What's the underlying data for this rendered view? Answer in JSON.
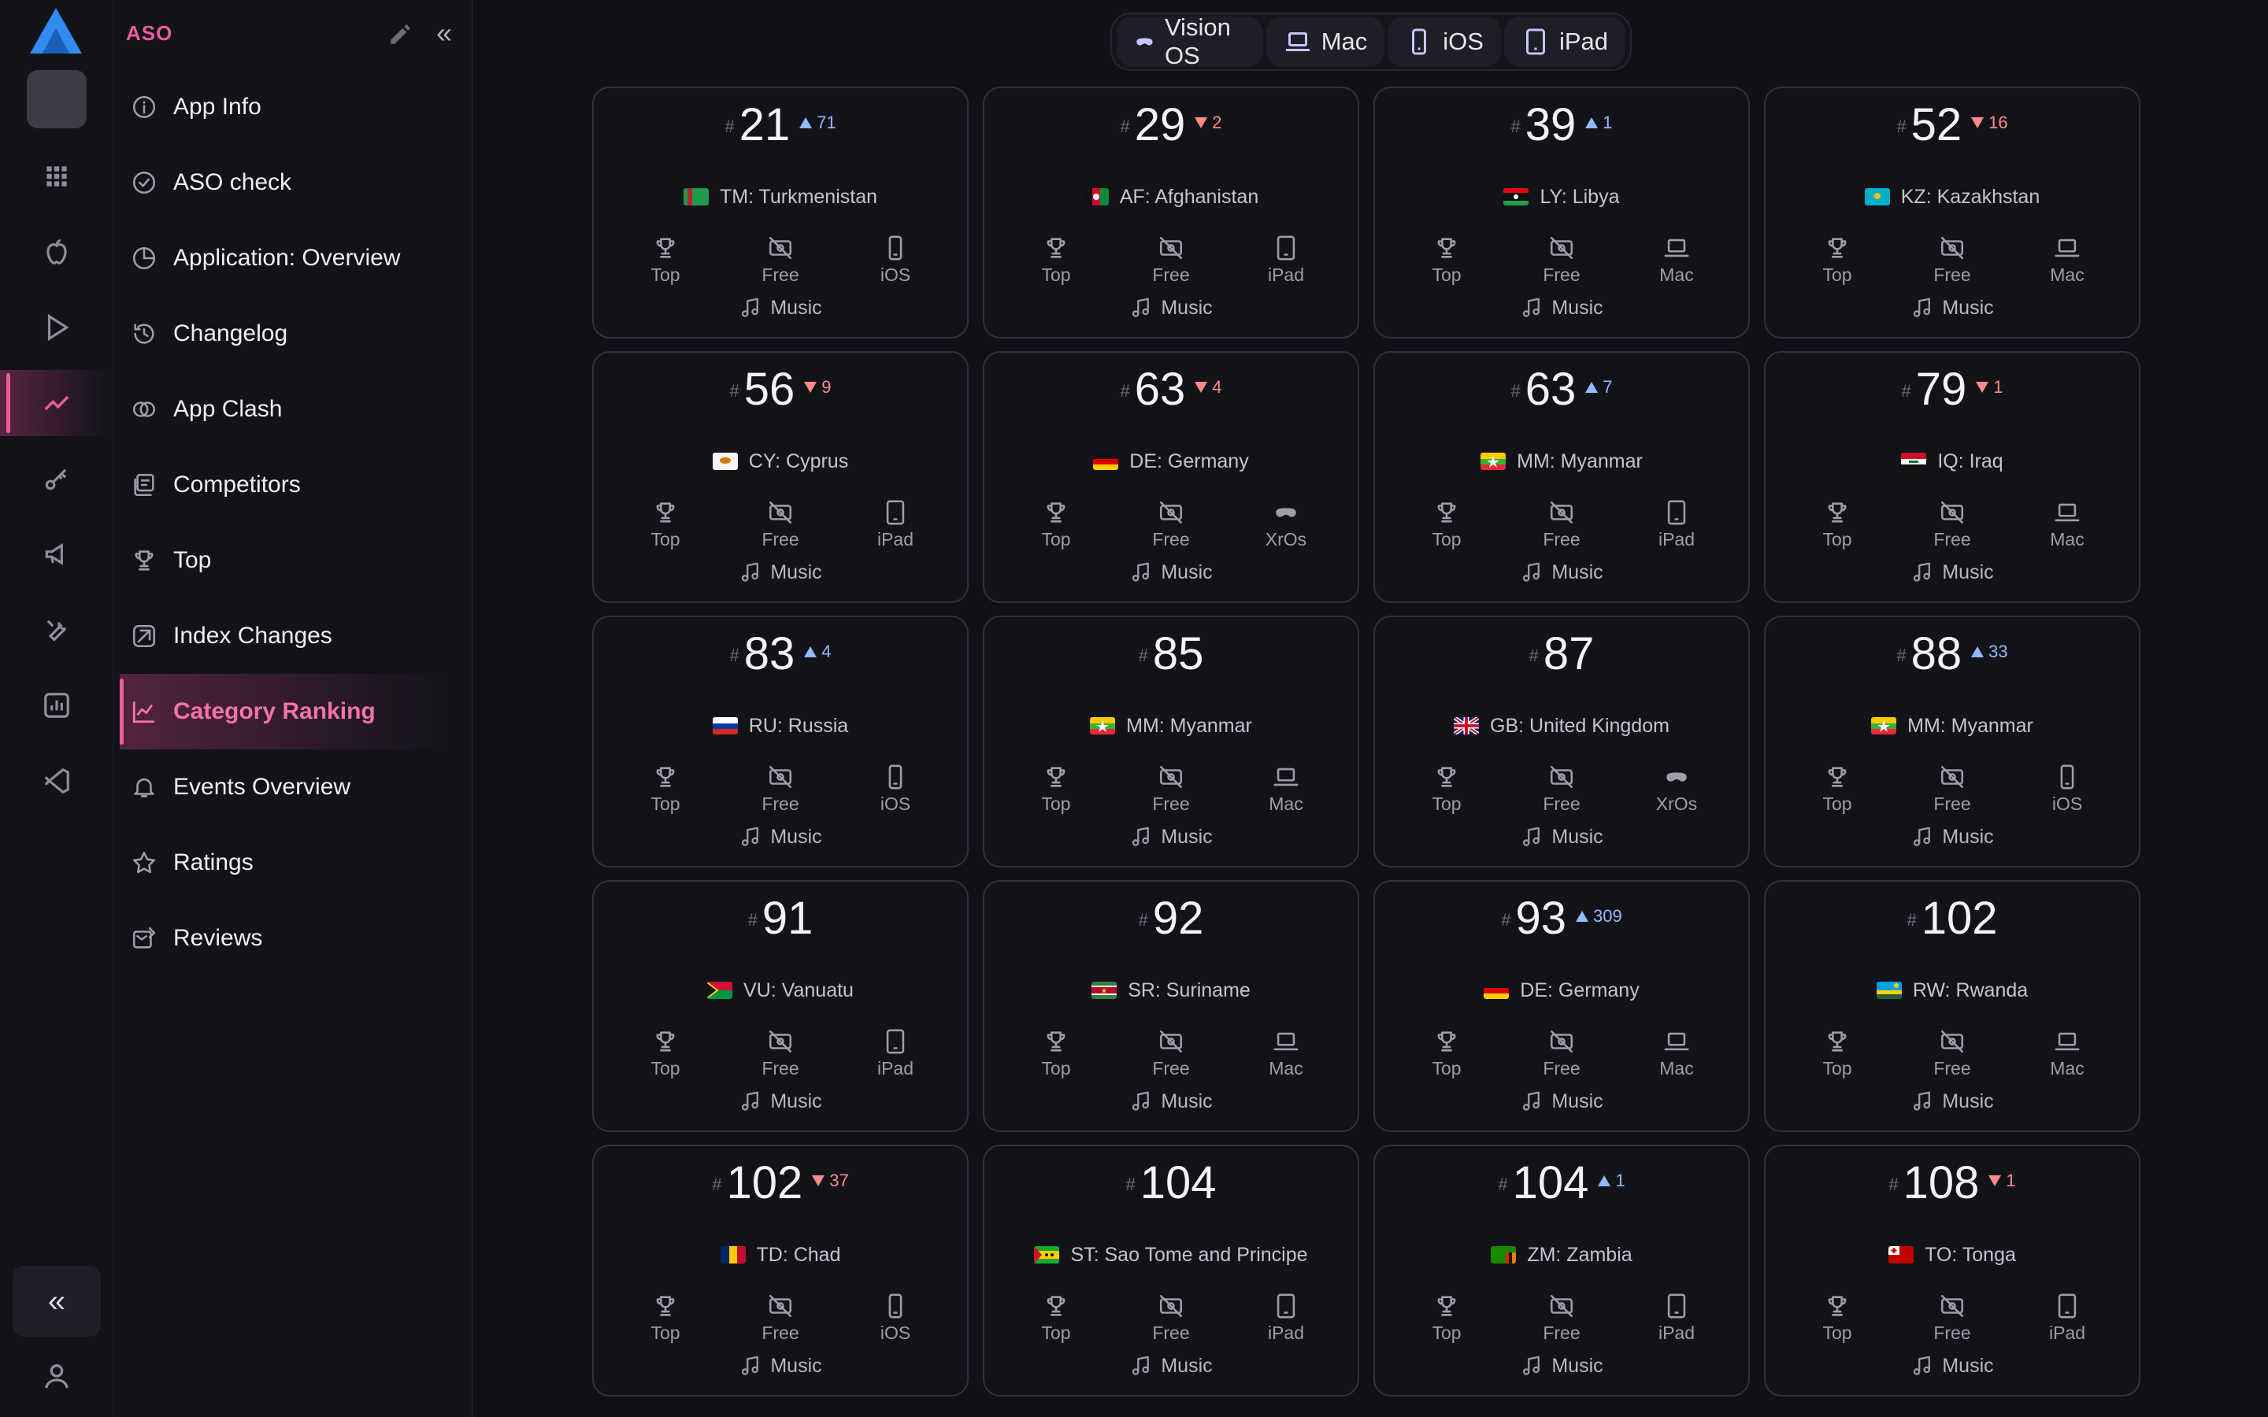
{
  "nav": {
    "title": "ASO",
    "items": [
      {
        "label": "App Info",
        "icon": "info-icon"
      },
      {
        "label": "ASO check",
        "icon": "check-circle-icon"
      },
      {
        "label": "Application: Overview",
        "icon": "pie-chart-icon"
      },
      {
        "label": "Changelog",
        "icon": "history-icon"
      },
      {
        "label": "App Clash",
        "icon": "versus-icon"
      },
      {
        "label": "Competitors",
        "icon": "competitors-icon"
      },
      {
        "label": "Top",
        "icon": "trophy-icon"
      },
      {
        "label": "Index Changes",
        "icon": "index-changes-icon"
      },
      {
        "label": "Category Ranking",
        "icon": "line-chart-icon",
        "active": true
      },
      {
        "label": "Events Overview",
        "icon": "bell-icon"
      },
      {
        "label": "Ratings",
        "icon": "star-icon"
      },
      {
        "label": "Reviews",
        "icon": "reviews-icon"
      }
    ]
  },
  "platforms": [
    {
      "label": "Vision OS",
      "icon": "vision-pro-icon"
    },
    {
      "label": "Mac",
      "icon": "laptop-icon"
    },
    {
      "label": "iOS",
      "icon": "phone-icon"
    },
    {
      "label": "iPad",
      "icon": "tablet-icon"
    }
  ],
  "colors": {
    "accent": "#ec5c9c",
    "up": "#93b9ff",
    "down": "#ff8a8a"
  },
  "cards": [
    {
      "rank": "21",
      "change": "71",
      "dir": "up",
      "country": "TM: Turkmenistan",
      "flag": "TM",
      "type": "Top",
      "price": "Free",
      "device": "iOS",
      "genre": "Music"
    },
    {
      "rank": "29",
      "change": "2",
      "dir": "down",
      "country": "AF: Afghanistan",
      "flag": "AF",
      "type": "Top",
      "price": "Free",
      "device": "iPad",
      "genre": "Music"
    },
    {
      "rank": "39",
      "change": "1",
      "dir": "up",
      "country": "LY: Libya",
      "flag": "LY",
      "type": "Top",
      "price": "Free",
      "device": "Mac",
      "genre": "Music"
    },
    {
      "rank": "52",
      "change": "16",
      "dir": "down",
      "country": "KZ: Kazakhstan",
      "flag": "KZ",
      "type": "Top",
      "price": "Free",
      "device": "Mac",
      "genre": "Music"
    },
    {
      "rank": "56",
      "change": "9",
      "dir": "down",
      "country": "CY: Cyprus",
      "flag": "CY",
      "type": "Top",
      "price": "Free",
      "device": "iPad",
      "genre": "Music"
    },
    {
      "rank": "63",
      "change": "4",
      "dir": "down",
      "country": "DE: Germany",
      "flag": "DE",
      "type": "Top",
      "price": "Free",
      "device": "XrOs",
      "genre": "Music"
    },
    {
      "rank": "63",
      "change": "7",
      "dir": "up",
      "country": "MM: Myanmar",
      "flag": "MM",
      "type": "Top",
      "price": "Free",
      "device": "iPad",
      "genre": "Music"
    },
    {
      "rank": "79",
      "change": "1",
      "dir": "down",
      "country": "IQ: Iraq",
      "flag": "IQ",
      "type": "Top",
      "price": "Free",
      "device": "Mac",
      "genre": "Music"
    },
    {
      "rank": "83",
      "change": "4",
      "dir": "up",
      "country": "RU: Russia",
      "flag": "RU",
      "type": "Top",
      "price": "Free",
      "device": "iOS",
      "genre": "Music"
    },
    {
      "rank": "85",
      "change": "",
      "dir": "",
      "country": "MM: Myanmar",
      "flag": "MM",
      "type": "Top",
      "price": "Free",
      "device": "Mac",
      "genre": "Music"
    },
    {
      "rank": "87",
      "change": "",
      "dir": "",
      "country": "GB: United Kingdom",
      "flag": "GB",
      "type": "Top",
      "price": "Free",
      "device": "XrOs",
      "genre": "Music"
    },
    {
      "rank": "88",
      "change": "33",
      "dir": "up",
      "country": "MM: Myanmar",
      "flag": "MM",
      "type": "Top",
      "price": "Free",
      "device": "iOS",
      "genre": "Music"
    },
    {
      "rank": "91",
      "change": "",
      "dir": "",
      "country": "VU: Vanuatu",
      "flag": "VU",
      "type": "Top",
      "price": "Free",
      "device": "iPad",
      "genre": "Music"
    },
    {
      "rank": "92",
      "change": "",
      "dir": "",
      "country": "SR: Suriname",
      "flag": "SR",
      "type": "Top",
      "price": "Free",
      "device": "Mac",
      "genre": "Music"
    },
    {
      "rank": "93",
      "change": "309",
      "dir": "up",
      "country": "DE: Germany",
      "flag": "DE",
      "type": "Top",
      "price": "Free",
      "device": "Mac",
      "genre": "Music"
    },
    {
      "rank": "102",
      "change": "",
      "dir": "",
      "country": "RW: Rwanda",
      "flag": "RW",
      "type": "Top",
      "price": "Free",
      "device": "Mac",
      "genre": "Music"
    },
    {
      "rank": "102",
      "change": "37",
      "dir": "down",
      "country": "TD: Chad",
      "flag": "TD",
      "type": "Top",
      "price": "Free",
      "device": "iOS",
      "genre": "Music"
    },
    {
      "rank": "104",
      "change": "",
      "dir": "",
      "country": "ST: Sao Tome and Principe",
      "flag": "ST",
      "type": "Top",
      "price": "Free",
      "device": "iPad",
      "genre": "Music"
    },
    {
      "rank": "104",
      "change": "1",
      "dir": "up",
      "country": "ZM: Zambia",
      "flag": "ZM",
      "type": "Top",
      "price": "Free",
      "device": "iPad",
      "genre": "Music"
    },
    {
      "rank": "108",
      "change": "1",
      "dir": "down",
      "country": "TO: Tonga",
      "flag": "TO",
      "type": "Top",
      "price": "Free",
      "device": "iPad",
      "genre": "Music"
    }
  ]
}
